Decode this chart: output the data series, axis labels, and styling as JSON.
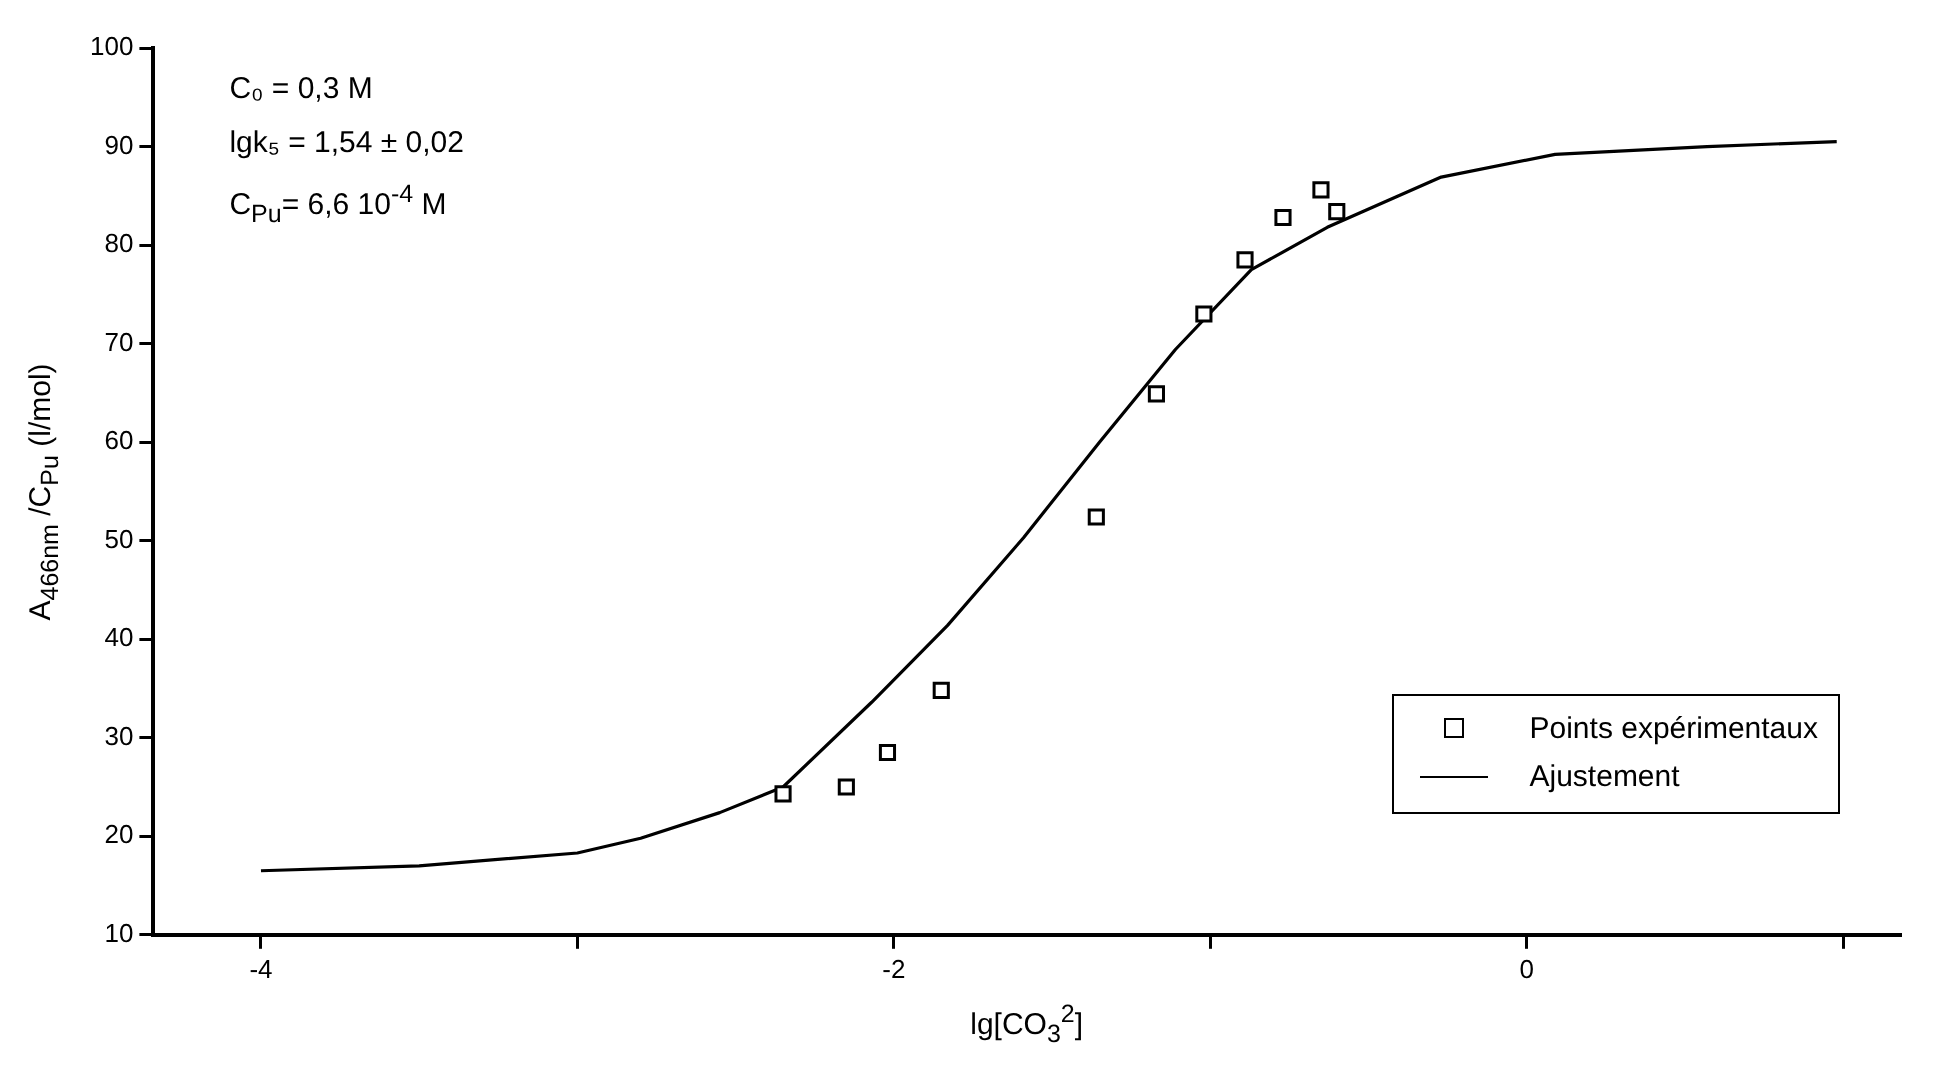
{
  "chart_data": {
    "type": "scatter",
    "xlabel": "lg[CO$_{3}$$^{2}$]",
    "ylabel": "A$_{466nm}$ /C$_{Pu}$ (l/mol)",
    "annotations": [
      "C₀ = 0,3 M",
      "lgk₅ = 1,54 ± 0,02",
      "C$_{Pu}$= 6,6 10$^{-4}$ M"
    ],
    "series": [
      {
        "name": "Points expérimentaux",
        "type": "scatter",
        "marker": "square",
        "color": "#000000",
        "x": [
          -2.35,
          -2.15,
          -2.02,
          -1.85,
          -1.36,
          -1.17,
          -1.02,
          -0.89,
          -0.77,
          -0.65,
          -0.6
        ],
        "values": [
          24.3,
          25.0,
          28.5,
          34.8,
          52.4,
          64.9,
          73.0,
          78.5,
          82.8,
          85.6,
          83.4
        ]
      },
      {
        "name": "Ajustement",
        "type": "line",
        "marker": "none",
        "line_style": "solid",
        "color": "#000000",
        "x": [
          -4.0,
          -3.5,
          -3.0,
          -2.8,
          -2.55,
          -2.35,
          -2.07,
          -1.83,
          -1.59,
          -1.35,
          -1.11,
          -0.87,
          -0.63,
          -0.27,
          0.09,
          0.57,
          0.98
        ],
        "values": [
          16.5,
          17.0,
          18.3,
          19.8,
          22.4,
          25.0,
          33.6,
          41.4,
          50.3,
          60.0,
          69.4,
          77.5,
          81.8,
          86.9,
          89.2,
          90.0,
          90.5
        ]
      }
    ],
    "xlim": [
      -4.34,
      1.18
    ],
    "xticks": [
      -4,
      {
        "value": -3,
        "label": null
      },
      -2,
      {
        "value": -1,
        "label": null
      },
      0,
      {
        "value": 1,
        "label": null
      }
    ],
    "ylim": [
      10,
      100
    ],
    "yticks": [
      10,
      20,
      30,
      40,
      50,
      60,
      70,
      80,
      90,
      100
    ],
    "grid": false,
    "legend": "bottom right"
  }
}
